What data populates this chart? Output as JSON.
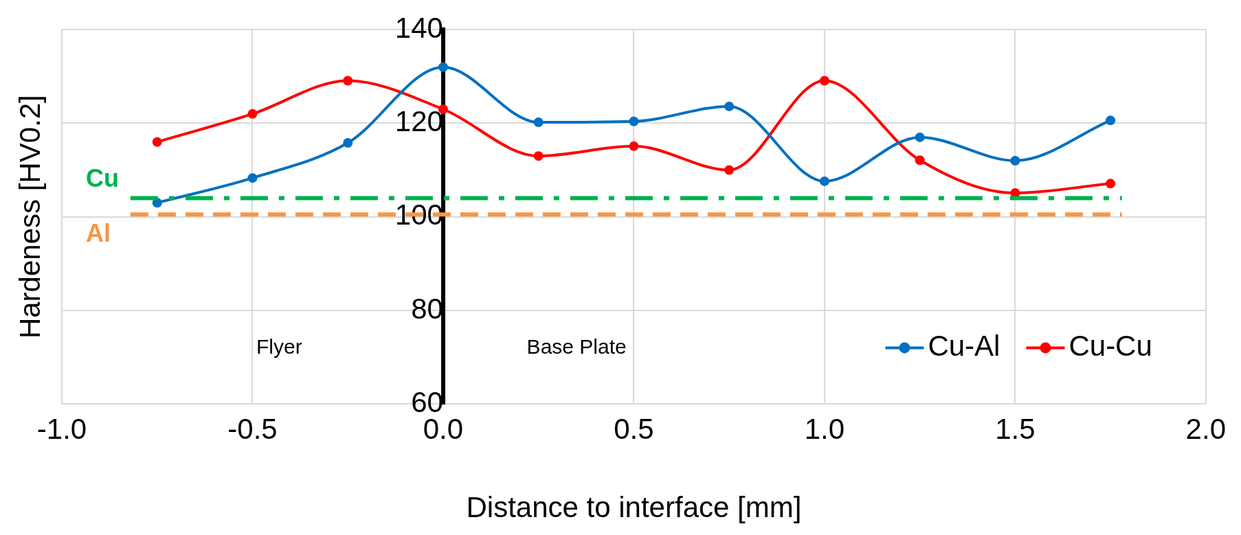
{
  "chart_data": {
    "type": "line",
    "xlabel": "Distance to interface [mm]",
    "ylabel": "Hardeness [HV0.2]",
    "x": [
      -0.75,
      -0.5,
      -0.25,
      0,
      0.25,
      0.5,
      0.75,
      1.0,
      1.25,
      1.5,
      1.75
    ],
    "series": [
      {
        "name": "Cu-Al",
        "color": "#0070c0",
        "values": [
          103,
          108.3,
          115.8,
          132,
          120.2,
          120.4,
          123.6,
          107.6,
          117,
          112,
          120.6
        ]
      },
      {
        "name": "Cu-Cu",
        "color": "#ff0000",
        "values": [
          116,
          122,
          129.1,
          123,
          113,
          115.1,
          110,
          129.1,
          112.1,
          105.1,
          107.1
        ]
      }
    ],
    "xlim": [
      -1.0,
      2.0
    ],
    "xticks": [
      {
        "value": -1,
        "label": "-1.0"
      },
      {
        "value": -0.5,
        "label": "-0.5"
      },
      {
        "value": 0,
        "label": "0.0"
      },
      {
        "value": 0.5,
        "label": "0.5"
      },
      {
        "value": 1,
        "label": "1.0"
      },
      {
        "value": 1.5,
        "label": "1.5"
      },
      {
        "value": 2,
        "label": "2.0"
      }
    ],
    "ylim": [
      60,
      140
    ],
    "yticks": [
      60,
      80,
      100,
      120,
      140
    ],
    "ref_lines": [
      {
        "axis": "y",
        "value": 104,
        "label": "Cu",
        "color": "#00b050",
        "line_style": "dashdot"
      },
      {
        "axis": "y",
        "value": 100.5,
        "label": "Al",
        "color": "#f79646",
        "line_style": "dashed"
      }
    ],
    "annotations": [
      "Flyer",
      "Base Plate"
    ],
    "grid": true,
    "legend": "bottom right",
    "marker": "circle",
    "line_style": "solid"
  }
}
